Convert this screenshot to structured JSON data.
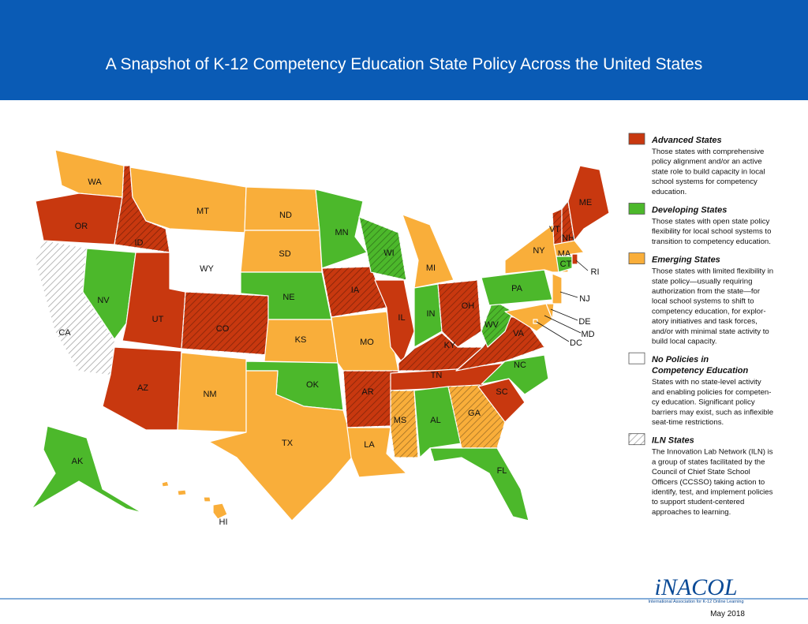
{
  "header": {
    "title": "A Snapshot of K-12 Competency Education State Policy Across the United States"
  },
  "legend": [
    {
      "title_lines": [
        "Advanced States"
      ],
      "color": "#c8380f",
      "description_lines": [
        "Those states with comprehensive",
        "policy alignment and/or an active",
        "state role to build capacity in local",
        "school systems for competency",
        "education."
      ]
    },
    {
      "title_lines": [
        "Developing States"
      ],
      "color": "#4cb82b",
      "description_lines": [
        "Those states with open state policy",
        "flexibility for local school systems to",
        "transition to competency education."
      ]
    },
    {
      "title_lines": [
        "Emerging States"
      ],
      "color": "#f9ae3a",
      "description_lines": [
        "Those states with limited flexibility in",
        "state policy—usually requiring",
        "authorization from the state—for",
        "local school systems to shift to",
        "competency education, for explor-",
        "atory initiatives and task forces,",
        "and/or with minimal state activity to",
        "build local capacity."
      ]
    },
    {
      "title_lines": [
        "No Policies in",
        "Competency Education"
      ],
      "color": "#ffffff",
      "description_lines": [
        "States with no state-level activity",
        "and enabling policies for competen-",
        "cy education. Significant policy",
        "barriers may exist, such as inflexible",
        "seat-time restrictions."
      ]
    },
    {
      "title_lines": [
        "ILN States"
      ],
      "color": "#ffffff",
      "hatch": true,
      "description_lines": [
        "The Innovation Lab Network (ILN) is",
        "a group of states facilitated by the",
        "Council of Chief State School",
        "Officers (CCSSO) taking action to",
        "identify, test, and implement policies",
        "to support student-centered",
        "approaches to learning."
      ]
    }
  ],
  "states": [
    {
      "label": "WA",
      "category": 2,
      "iln": false
    },
    {
      "label": "OR",
      "category": 0,
      "iln": false
    },
    {
      "label": "CA",
      "category": 3,
      "iln": true
    },
    {
      "label": "NV",
      "category": 1,
      "iln": false
    },
    {
      "label": "ID",
      "category": 0,
      "iln": true
    },
    {
      "label": "MT",
      "category": 2,
      "iln": false
    },
    {
      "label": "WY",
      "category": 3,
      "iln": false
    },
    {
      "label": "UT",
      "category": 0,
      "iln": false
    },
    {
      "label": "CO",
      "category": 0,
      "iln": true
    },
    {
      "label": "AZ",
      "category": 0,
      "iln": false
    },
    {
      "label": "NM",
      "category": 2,
      "iln": false
    },
    {
      "label": "ND",
      "category": 2,
      "iln": false
    },
    {
      "label": "SD",
      "category": 2,
      "iln": false
    },
    {
      "label": "NE",
      "category": 1,
      "iln": false
    },
    {
      "label": "KS",
      "category": 2,
      "iln": false
    },
    {
      "label": "OK",
      "category": 1,
      "iln": false
    },
    {
      "label": "TX",
      "category": 2,
      "iln": false
    },
    {
      "label": "MN",
      "category": 1,
      "iln": false
    },
    {
      "label": "IA",
      "category": 0,
      "iln": true
    },
    {
      "label": "MO",
      "category": 2,
      "iln": false
    },
    {
      "label": "AR",
      "category": 0,
      "iln": true
    },
    {
      "label": "LA",
      "category": 2,
      "iln": false
    },
    {
      "label": "WI",
      "category": 1,
      "iln": true
    },
    {
      "label": "IL",
      "category": 0,
      "iln": false
    },
    {
      "label": "MI",
      "category": 2,
      "iln": false
    },
    {
      "label": "IN",
      "category": 1,
      "iln": false
    },
    {
      "label": "OH",
      "category": 0,
      "iln": true
    },
    {
      "label": "KY",
      "category": 0,
      "iln": true
    },
    {
      "label": "TN",
      "category": 0,
      "iln": false
    },
    {
      "label": "MS",
      "category": 2,
      "iln": true
    },
    {
      "label": "AL",
      "category": 1,
      "iln": false
    },
    {
      "label": "GA",
      "category": 2,
      "iln": true
    },
    {
      "label": "FL",
      "category": 1,
      "iln": false
    },
    {
      "label": "SC",
      "category": 0,
      "iln": false
    },
    {
      "label": "NC",
      "category": 1,
      "iln": false
    },
    {
      "label": "VA",
      "category": 0,
      "iln": true
    },
    {
      "label": "WV",
      "category": 1,
      "iln": true
    },
    {
      "label": "PA",
      "category": 1,
      "iln": false
    },
    {
      "label": "NY",
      "category": 2,
      "iln": false
    },
    {
      "label": "NJ",
      "category": 2,
      "iln": false
    },
    {
      "label": "DE",
      "category": 2,
      "iln": false
    },
    {
      "label": "MD",
      "category": 2,
      "iln": false
    },
    {
      "label": "DC",
      "category": 2,
      "iln": false
    },
    {
      "label": "VT",
      "category": 0,
      "iln": true
    },
    {
      "label": "NH",
      "category": 0,
      "iln": true
    },
    {
      "label": "ME",
      "category": 0,
      "iln": false
    },
    {
      "label": "MA",
      "category": 2,
      "iln": false
    },
    {
      "label": "CT",
      "category": 1,
      "iln": false
    },
    {
      "label": "RI",
      "category": 0,
      "iln": false
    },
    {
      "label": "AK",
      "category": 1,
      "iln": false
    },
    {
      "label": "HI",
      "category": 2,
      "iln": false
    }
  ],
  "footer": {
    "logo": "iNACOL",
    "logo_subtitle": "International Association for K-12 Online Learning",
    "date": "May 2018"
  }
}
